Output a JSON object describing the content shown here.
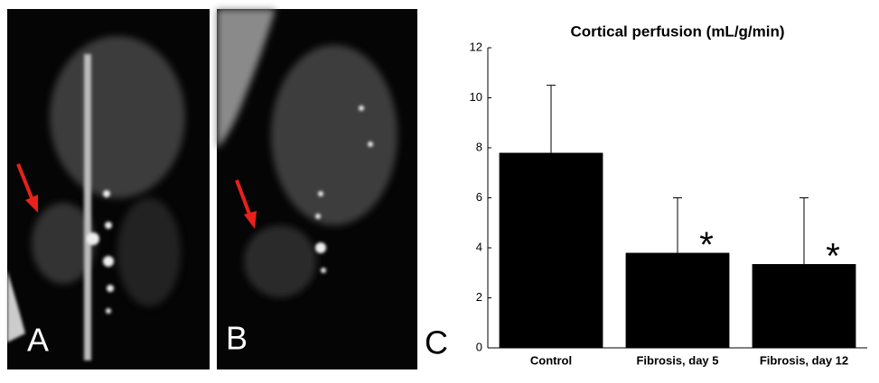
{
  "panel_labels": [
    "A",
    "B",
    "C"
  ],
  "chart_data": {
    "type": "bar",
    "title": "Cortical perfusion (mL/g/min)",
    "categories": [
      "Control",
      "Fibrosis, day 5",
      "Fibrosis, day 12"
    ],
    "values": [
      7.8,
      3.8,
      3.35
    ],
    "errors": [
      2.7,
      2.2,
      2.65
    ],
    "significance": [
      null,
      "*",
      "*"
    ],
    "color": "#000000",
    "ylim": [
      0,
      12
    ],
    "yticks": [
      0,
      2,
      4,
      6,
      8,
      10,
      12
    ],
    "grid": false
  }
}
